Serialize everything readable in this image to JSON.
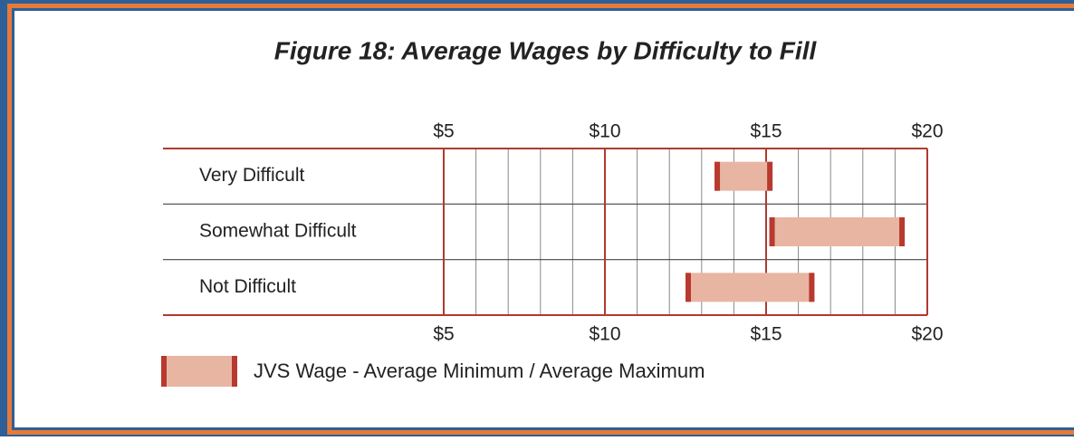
{
  "chart_data": {
    "type": "range_bar",
    "title": "Figure 18:  Average Wages by Difficulty to Fill",
    "categories": [
      "Very Difficult",
      "Somewhat Difficult",
      "Not Difficult"
    ],
    "series": [
      {
        "name": "JVS Wage - Average Minimum / Average Maximum",
        "color": "#e8b5a3",
        "cap_color": "#b8392e",
        "low": [
          13.4,
          15.1,
          12.5
        ],
        "high": [
          15.2,
          19.3,
          16.5
        ]
      }
    ],
    "xlim": [
      5,
      20
    ],
    "xticks": [
      {
        "value": 5,
        "label": "$5"
      },
      {
        "value": 10,
        "label": "$10"
      },
      {
        "value": 15,
        "label": "$15"
      },
      {
        "value": 20,
        "label": "$20"
      }
    ],
    "minor_xticks": [
      6,
      7,
      8,
      9,
      11,
      12,
      13,
      14,
      16,
      17,
      18,
      19
    ],
    "grid": true
  }
}
